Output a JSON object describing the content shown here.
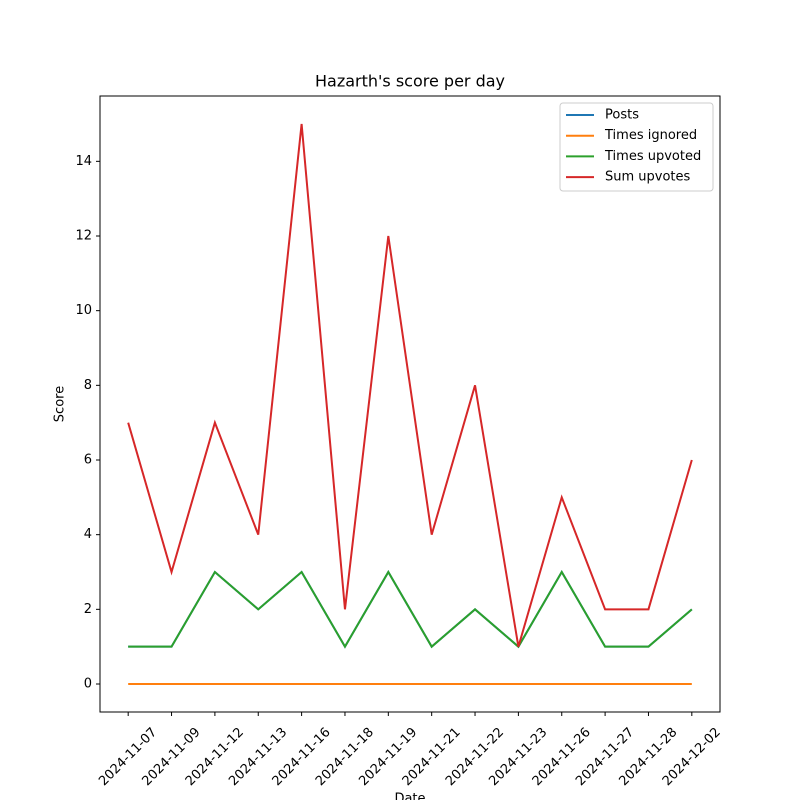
{
  "chart_data": {
    "type": "line",
    "title": "Hazarth's score per day",
    "x_label": "Date",
    "y_label": "Score",
    "categories": [
      "2024-11-07",
      "2024-11-09",
      "2024-11-12",
      "2024-11-13",
      "2024-11-16",
      "2024-11-18",
      "2024-11-19",
      "2024-11-21",
      "2024-11-22",
      "2024-11-23",
      "2024-11-26",
      "2024-11-27",
      "2024-11-28",
      "2024-12-02"
    ],
    "series": [
      {
        "name": "Posts",
        "color": "#1f77b4",
        "values": [
          1,
          1,
          3,
          2,
          3,
          1,
          3,
          1,
          2,
          1,
          3,
          1,
          1,
          2
        ]
      },
      {
        "name": "Times ignored",
        "color": "#ff7f0e",
        "values": [
          0,
          0,
          0,
          0,
          0,
          0,
          0,
          0,
          0,
          0,
          0,
          0,
          0,
          0
        ]
      },
      {
        "name": "Times upvoted",
        "color": "#2ca02c",
        "values": [
          1,
          1,
          3,
          2,
          3,
          1,
          3,
          1,
          2,
          1,
          3,
          1,
          1,
          2
        ]
      },
      {
        "name": "Sum upvotes",
        "color": "#d62728",
        "values": [
          7,
          3,
          7,
          4,
          15,
          2,
          12,
          4,
          8,
          1,
          5,
          2,
          2,
          6
        ]
      }
    ],
    "ylim": [
      -0.75,
      15.75
    ],
    "yticks": [
      0,
      2,
      4,
      6,
      8,
      10,
      12,
      14
    ],
    "legend": "upper right",
    "grid": false
  }
}
